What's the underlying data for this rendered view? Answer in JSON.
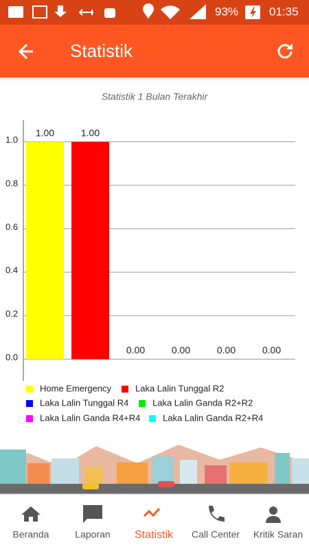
{
  "status_bar": {
    "battery": "93%",
    "time": "01:35"
  },
  "app_bar": {
    "title": "Statistik"
  },
  "chart_data": {
    "type": "bar",
    "subtitle": "Statistik 1 Bulan Terakhir",
    "categories": [
      "Home Emergency",
      "Laka Lalin Tunggal R2",
      "Laka Lalin Tunggal R4",
      "Laka Lalin Ganda R2+R2",
      "Laka Lalin Ganda R4+R4",
      "Laka Lalin Ganda R2+R4"
    ],
    "colors": [
      "#ffff00",
      "#ff0000",
      "#0000ff",
      "#00ee00",
      "#ff00ff",
      "#00ffff"
    ],
    "values": [
      1,
      1,
      0,
      0,
      0,
      0
    ],
    "value_labels": [
      "1.00",
      "1.00",
      "0.00",
      "0.00",
      "0.00",
      "0.00"
    ],
    "ylim": [
      -0.1,
      1.1
    ],
    "yticks": [
      {
        "value": 0,
        "label": "0.0"
      },
      0.2,
      0.4,
      0.6,
      0.8,
      {
        "value": 1,
        "label": "1.0"
      }
    ],
    "grid": true
  },
  "bottom_nav": {
    "items": [
      "Beranda",
      "Laporan",
      "Statistik",
      "Call Center",
      "Kritik Saran"
    ],
    "active": 2
  }
}
